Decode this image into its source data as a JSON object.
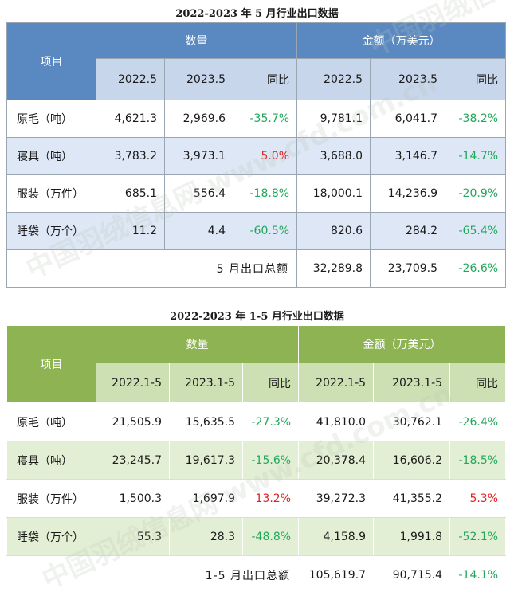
{
  "table1": {
    "title": "2022-2023 年 5 月行业出口数据",
    "item_header": "项目",
    "quantity_header": "数量",
    "amount_header": "金额（万美元）",
    "sub_headers": [
      "2022.5",
      "2023.5",
      "同比",
      "2022.5",
      "2023.5",
      "同比"
    ],
    "rows": [
      {
        "label": "原毛（吨）",
        "q_prev": "4,621.3",
        "q_cur": "2,969.6",
        "q_yoy": "-35.7%",
        "a_prev": "9,781.1",
        "a_cur": "6,041.7",
        "a_yoy": "-38.2%"
      },
      {
        "label": "寝具（吨）",
        "q_prev": "3,783.2",
        "q_cur": "3,973.1",
        "q_yoy": "5.0%",
        "a_prev": "3,688.0",
        "a_cur": "3,146.7",
        "a_yoy": "-14.7%"
      },
      {
        "label": "服装（万件）",
        "q_prev": "685.1",
        "q_cur": "556.4",
        "q_yoy": "-18.8%",
        "a_prev": "18,000.1",
        "a_cur": "14,236.9",
        "a_yoy": "-20.9%"
      },
      {
        "label": "睡袋（万个）",
        "q_prev": "11.2",
        "q_cur": "4.4",
        "q_yoy": "-60.5%",
        "a_prev": "820.6",
        "a_cur": "284.2",
        "a_yoy": "-65.4%"
      }
    ],
    "total": {
      "label": "5 月出口总额",
      "prev": "32,289.8",
      "cur": "23,709.5",
      "yoy": "-26.6%"
    }
  },
  "table2": {
    "title": "2022-2023 年 1-5 月行业出口数据",
    "item_header": "项目",
    "quantity_header": "数量",
    "amount_header": "金额（万美元）",
    "sub_headers": [
      "2022.1-5",
      "2023.1-5",
      "同比",
      "2022.1-5",
      "2023.1-5",
      "同比"
    ],
    "rows": [
      {
        "label": "原毛（吨）",
        "q_prev": "21,505.9",
        "q_cur": "15,635.5",
        "q_yoy": "-27.3%",
        "a_prev": "41,810.0",
        "a_cur": "30,762.1",
        "a_yoy": "-26.4%"
      },
      {
        "label": "寝具（吨）",
        "q_prev": "23,245.7",
        "q_cur": "19,617.3",
        "q_yoy": "-15.6%",
        "a_prev": "20,378.4",
        "a_cur": "16,606.2",
        "a_yoy": "-18.5%"
      },
      {
        "label": "服装（万件）",
        "q_prev": "1,500.3",
        "q_cur": "1,697.9",
        "q_yoy": "13.2%",
        "a_prev": "39,272.3",
        "a_cur": "41,355.2",
        "a_yoy": "5.3%"
      },
      {
        "label": "睡袋（万个）",
        "q_prev": "55.3",
        "q_cur": "28.3",
        "q_yoy": "-48.8%",
        "a_prev": "4,158.9",
        "a_cur": "1,991.8",
        "a_yoy": "-52.1%"
      }
    ],
    "total": {
      "label": "1-5 月出口总额",
      "prev": "105,619.7",
      "cur": "90,715.4",
      "yoy": "-14.1%"
    }
  },
  "colors": {
    "table1_header_dark": "#5a89c2",
    "table1_header_light": "#c8d6ec",
    "table1_row_shade": "#dde7f5",
    "table2_header_dark": "#8db352",
    "table2_header_light": "#cde0b4",
    "table2_row_shade": "#e3efd4",
    "negative": "#22a65a",
    "positive": "#e02020"
  },
  "watermark": "中国羽绒信息网 www.cfd.com.cn"
}
